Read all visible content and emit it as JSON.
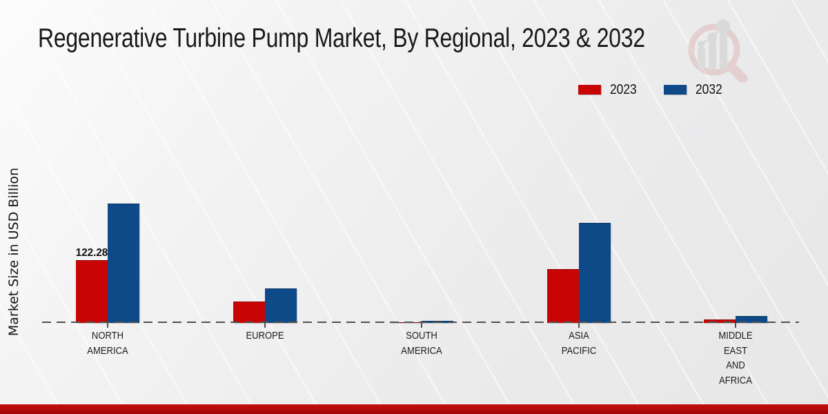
{
  "header": {
    "title": "Regenerative Turbine Pump Market, By Regional, 2023 & 2032",
    "logo_icon": "magnifier-growth-chart-icon"
  },
  "chart_data": {
    "type": "bar",
    "title": "Regenerative Turbine Pump Market, By Regional, 2023 & 2032",
    "xlabel": "",
    "ylabel": "Market Size in USD Billion",
    "categories": [
      "NORTH AMERICA",
      "EUROPE",
      "SOUTH AMERICA",
      "ASIA PACIFIC",
      "MIDDLE EAST AND AFRICA"
    ],
    "category_label_lines": [
      [
        "NORTH",
        "AMERICA"
      ],
      [
        "EUROPE"
      ],
      [
        "SOUTH",
        "AMERICA"
      ],
      [
        "ASIA",
        "PACIFIC"
      ],
      [
        "MIDDLE",
        "EAST",
        "AND",
        "AFRICA"
      ]
    ],
    "series": [
      {
        "name": "2023",
        "color": "#c80505",
        "values": [
          122.28,
          41.5,
          1.5,
          105.0,
          6.5
        ]
      },
      {
        "name": "2032",
        "color": "#0d4a87",
        "values": [
          232.5,
          67.0,
          4.0,
          195.0,
          13.5
        ]
      }
    ],
    "data_labels": [
      {
        "series_index": 0,
        "category_index": 0,
        "text": "122.28"
      }
    ],
    "ylim": [
      0,
      250
    ],
    "grid": false,
    "legend_position": "top-right",
    "axis_style": "dashed-baseline",
    "note_only_labeled_value": "122.28 is the only value printed on the chart; other values estimated from bar heights"
  },
  "colors": {
    "series_2023": "#c80505",
    "series_2032": "#0d4a87",
    "footer_band": "#b50b0b",
    "baseline": "#4f4f4f",
    "background": "#ececed"
  }
}
